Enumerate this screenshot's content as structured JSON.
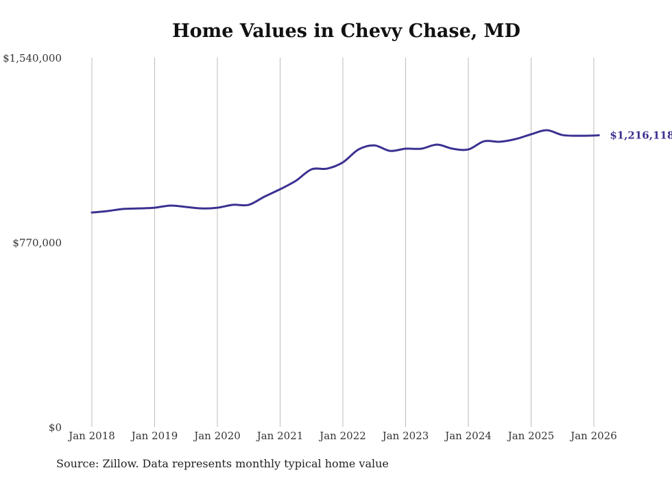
{
  "chart_data": {
    "type": "line",
    "title": "Home Values in Chevy Chase, MD",
    "source": "Source: Zillow. Data represents monthly typical home value",
    "xlabel": "",
    "ylabel": "",
    "ylim": [
      0,
      1540000
    ],
    "y_ticks": [
      0,
      770000,
      1540000
    ],
    "y_tick_labels": [
      "$0",
      "$770,000",
      "$1,540,000"
    ],
    "x_ticks": [
      2018,
      2019,
      2020,
      2021,
      2022,
      2023,
      2024,
      2025,
      2026
    ],
    "x_tick_labels": [
      "Jan 2018",
      "Jan 2019",
      "Jan 2020",
      "Jan 2021",
      "Jan 2022",
      "Jan 2023",
      "Jan 2024",
      "Jan 2025",
      "Jan 2026"
    ],
    "grid": "vertical",
    "line_color": "#3b3191",
    "end_label": "$1,216,118",
    "series": [
      {
        "name": "Typical home value",
        "x": [
          2018,
          2018.25,
          2018.5,
          2018.75,
          2019,
          2019.25,
          2019.5,
          2019.75,
          2020,
          2020.25,
          2020.5,
          2020.75,
          2021,
          2021.25,
          2021.5,
          2021.75,
          2022,
          2022.25,
          2022.5,
          2022.75,
          2023,
          2023.25,
          2023.5,
          2023.75,
          2024,
          2024.25,
          2024.5,
          2024.75,
          2025,
          2025.25,
          2025.5,
          2025.75,
          2026,
          2026.08
        ],
        "values": [
          894000,
          900000,
          909000,
          911000,
          914000,
          923000,
          917000,
          911000,
          914000,
          926000,
          926000,
          960000,
          991000,
          1026000,
          1074000,
          1077000,
          1103000,
          1157000,
          1174000,
          1151000,
          1160000,
          1160000,
          1177000,
          1160000,
          1157000,
          1191000,
          1189000,
          1200000,
          1220000,
          1237000,
          1217000,
          1214000,
          1215000,
          1216118
        ]
      }
    ]
  }
}
